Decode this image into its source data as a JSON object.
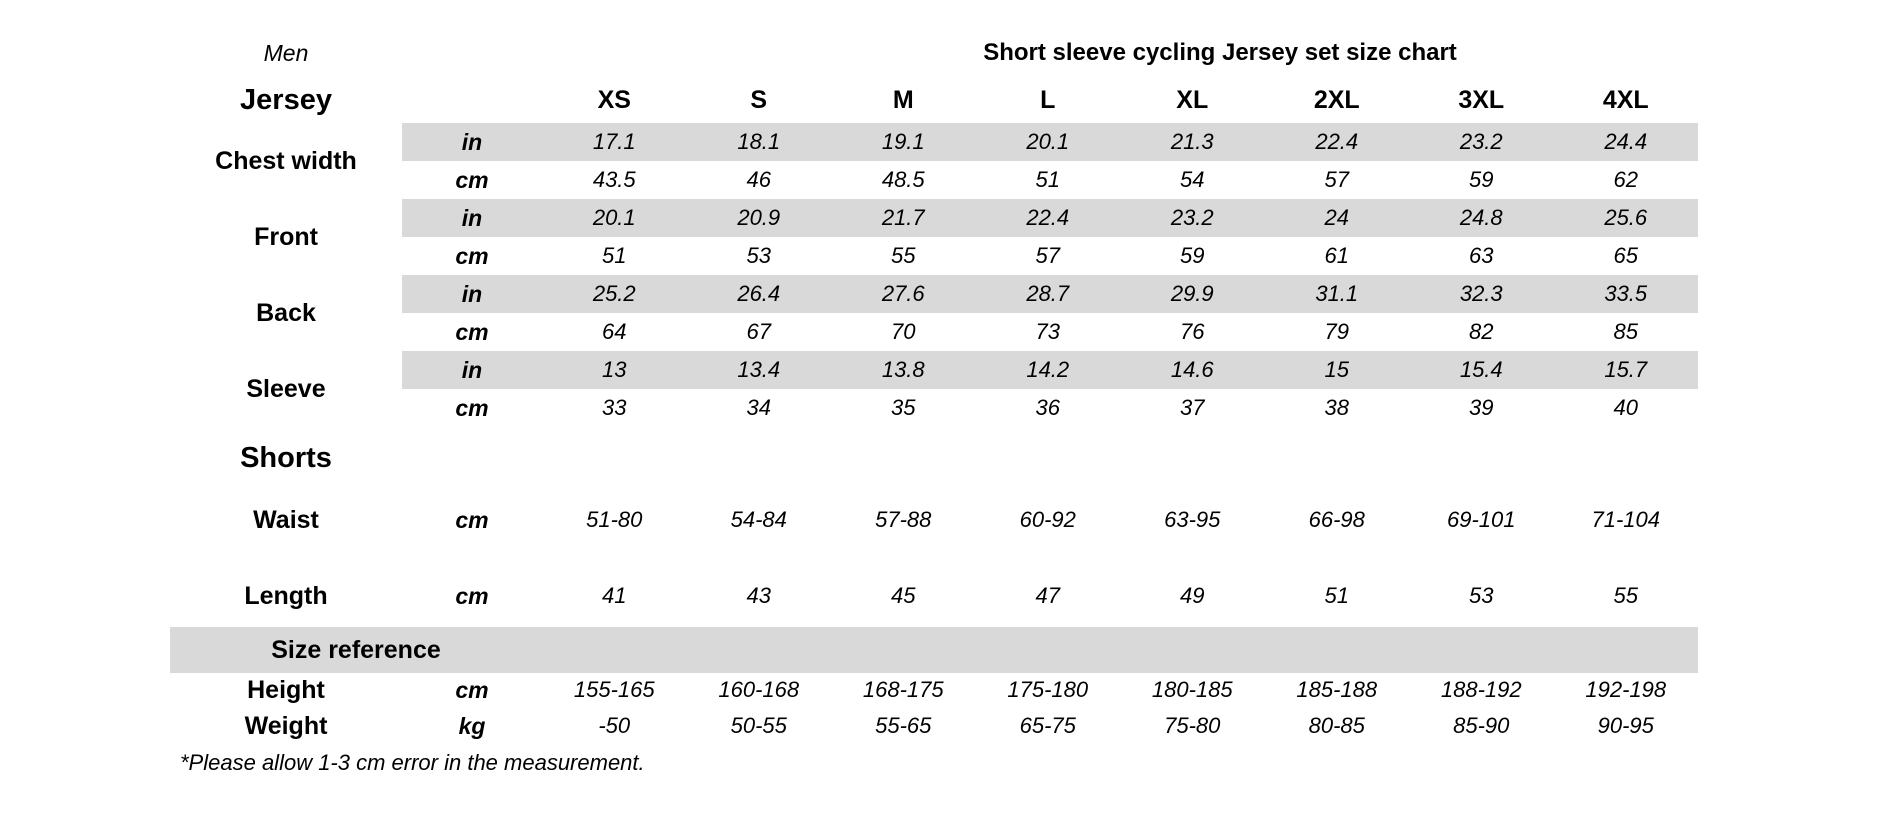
{
  "colors": {
    "band": "#d9d9d9",
    "text": "#000000",
    "background": "#ffffff"
  },
  "header": {
    "gender": "Men",
    "title": "Short sleeve cycling Jersey set size chart",
    "sizes": [
      "XS",
      "S",
      "M",
      "L",
      "XL",
      "2XL",
      "3XL",
      "4XL"
    ]
  },
  "jersey": {
    "section_label": "Jersey",
    "measurements": [
      {
        "label": "Chest width",
        "rows": [
          {
            "unit": "in",
            "shaded": true,
            "values": [
              "17.1",
              "18.1",
              "19.1",
              "20.1",
              "21.3",
              "22.4",
              "23.2",
              "24.4"
            ]
          },
          {
            "unit": "cm",
            "shaded": false,
            "values": [
              "43.5",
              "46",
              "48.5",
              "51",
              "54",
              "57",
              "59",
              "62"
            ]
          }
        ]
      },
      {
        "label": "Front",
        "rows": [
          {
            "unit": "in",
            "shaded": true,
            "values": [
              "20.1",
              "20.9",
              "21.7",
              "22.4",
              "23.2",
              "24",
              "24.8",
              "25.6"
            ]
          },
          {
            "unit": "cm",
            "shaded": false,
            "values": [
              "51",
              "53",
              "55",
              "57",
              "59",
              "61",
              "63",
              "65"
            ]
          }
        ]
      },
      {
        "label": "Back",
        "rows": [
          {
            "unit": "in",
            "shaded": true,
            "values": [
              "25.2",
              "26.4",
              "27.6",
              "28.7",
              "29.9",
              "31.1",
              "32.3",
              "33.5"
            ]
          },
          {
            "unit": "cm",
            "shaded": false,
            "values": [
              "64",
              "67",
              "70",
              "73",
              "76",
              "79",
              "82",
              "85"
            ]
          }
        ]
      },
      {
        "label": "Sleeve",
        "rows": [
          {
            "unit": "in",
            "shaded": true,
            "values": [
              "13",
              "13.4",
              "13.8",
              "14.2",
              "14.6",
              "15",
              "15.4",
              "15.7"
            ]
          },
          {
            "unit": "cm",
            "shaded": false,
            "values": [
              "33",
              "34",
              "35",
              "36",
              "37",
              "38",
              "39",
              "40"
            ]
          }
        ]
      }
    ]
  },
  "shorts": {
    "section_label": "Shorts",
    "rows": [
      {
        "label": "Waist",
        "unit": "cm",
        "values": [
          "51-80",
          "54-84",
          "57-88",
          "60-92",
          "63-95",
          "66-98",
          "69-101",
          "71-104"
        ]
      },
      {
        "label": "Length",
        "unit": "cm",
        "values": [
          "41",
          "43",
          "45",
          "47",
          "49",
          "51",
          "53",
          "55"
        ]
      }
    ]
  },
  "size_reference": {
    "section_label": "Size reference",
    "rows": [
      {
        "label": "Height",
        "unit": "cm",
        "values": [
          "155-165",
          "160-168",
          "168-175",
          "175-180",
          "180-185",
          "185-188",
          "188-192",
          "192-198"
        ]
      },
      {
        "label": "Weight",
        "unit": "kg",
        "values": [
          "-50",
          "50-55",
          "55-65",
          "65-75",
          "75-80",
          "80-85",
          "85-90",
          "90-95"
        ]
      }
    ]
  },
  "footnote": "*Please allow 1-3 cm error in the measurement."
}
